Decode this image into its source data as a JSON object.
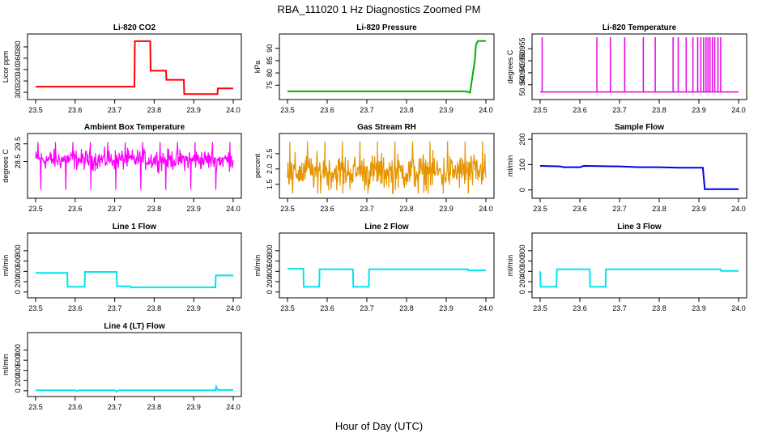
{
  "figure": {
    "title": "RBA_111020  1 Hz Diagnostics Zoomed PM",
    "xlabel": "Hour of Day (UTC)"
  },
  "chart_data": [
    {
      "id": "co2",
      "type": "line",
      "title": "Li-820 CO2",
      "ylabel": "Licor ppm",
      "color": "#ff0000",
      "xlim": [
        23.5,
        24.0
      ],
      "ylim": [
        293,
        397
      ],
      "xticks": [
        "23.5",
        "23.6",
        "23.7",
        "23.8",
        "23.9",
        "24.0"
      ],
      "yticks": [
        300,
        320,
        340,
        360,
        380
      ],
      "x": [
        23.5,
        23.75,
        23.751,
        23.79,
        23.791,
        23.83,
        23.831,
        23.875,
        23.876,
        23.96,
        23.961,
        24.0
      ],
      "y": [
        310,
        310,
        390,
        390,
        338,
        338,
        322,
        322,
        297,
        297,
        307,
        307
      ]
    },
    {
      "id": "pressure",
      "type": "line",
      "title": "Li-820 Pressure",
      "ylabel": "kPa",
      "color": "#00b000",
      "xlim": [
        23.5,
        24.0
      ],
      "ylim": [
        70.5,
        94.5
      ],
      "xticks": [
        "23.5",
        "23.6",
        "23.7",
        "23.8",
        "23.9",
        "24.0"
      ],
      "yticks": [
        75,
        80,
        85,
        90
      ],
      "x": [
        23.5,
        23.95,
        23.96,
        23.972,
        23.975,
        23.98,
        24.0
      ],
      "y": [
        72.5,
        72.5,
        72.0,
        85.0,
        91.5,
        93.0,
        93.0
      ]
    },
    {
      "id": "licor_temp",
      "type": "spikes",
      "title": "Li-820 Temperature",
      "ylabel": "degrees C",
      "color": "#e600e6",
      "xlim": [
        23.5,
        24.0
      ],
      "ylim": [
        50.9352,
        50.9598
      ],
      "xticks": [
        "23.5",
        "23.6",
        "23.7",
        "23.8",
        "23.9",
        "24.0"
      ],
      "yticks": [
        "50.940",
        "50.945",
        "50.950",
        "50.955"
      ],
      "baseline": 50.937,
      "top": 50.9598,
      "spike_x": [
        23.505,
        23.643,
        23.677,
        23.713,
        23.76,
        23.79,
        23.835,
        23.848,
        23.868,
        23.885,
        23.897,
        23.905,
        23.912,
        23.918,
        23.923,
        23.928,
        23.934,
        23.94,
        23.948,
        23.955
      ]
    },
    {
      "id": "ambient_temp",
      "type": "noise",
      "title": "Ambient Box Temperature",
      "ylabel": "degrees C",
      "color": "#ff00ff",
      "xlim": [
        23.5,
        24.0
      ],
      "ylim": [
        26.6,
        29.9
      ],
      "xticks": [
        "23.5",
        "23.6",
        "23.7",
        "23.8",
        "23.9",
        "24.0"
      ],
      "yticks": [
        "28.5",
        "29.5"
      ],
      "ytick_values": [
        28.5,
        29.5
      ],
      "mean": 28.6,
      "amplitude": 0.35,
      "min": 26.9,
      "max": 29.6
    },
    {
      "id": "gas_rh",
      "type": "noise",
      "title": "Gas Stream RH",
      "ylabel": "percent",
      "color": "#e69500",
      "xlim": [
        23.5,
        24.0
      ],
      "ylim": [
        1.15,
        3.05
      ],
      "xticks": [
        "23.5",
        "23.6",
        "23.7",
        "23.8",
        "23.9",
        "24.0"
      ],
      "yticks": [
        "1.5",
        "2.0",
        "2.5"
      ],
      "ytick_values": [
        1.5,
        2.0,
        2.5
      ],
      "mean": 1.9,
      "amplitude": 0.35,
      "min": 1.2,
      "max": 2.9
    },
    {
      "id": "sample_flow",
      "type": "line",
      "title": "Sample Flow",
      "ylabel": "ml/min",
      "color": "#0000e6",
      "xlim": [
        23.5,
        24.0
      ],
      "ylim": [
        -20,
        210
      ],
      "xticks": [
        "23.5",
        "23.6",
        "23.7",
        "23.8",
        "23.9",
        "24.0"
      ],
      "yticks": [
        0,
        100,
        200
      ],
      "x": [
        23.5,
        23.55,
        23.56,
        23.6,
        23.61,
        23.7,
        23.75,
        23.8,
        23.85,
        23.91,
        23.915,
        24.0
      ],
      "y": [
        95,
        93,
        90,
        90,
        95,
        93,
        90,
        90,
        88,
        88,
        3,
        3
      ]
    },
    {
      "id": "line1_flow",
      "type": "line",
      "title": "Line 1 Flow",
      "ylabel": "ml/min",
      "color": "#00e5ee",
      "xlim": [
        23.5,
        24.0
      ],
      "ylim": [
        -50,
        1080
      ],
      "xticks": [
        "23.5",
        "23.6",
        "23.7",
        "23.8",
        "23.9",
        "24.0"
      ],
      "yticks": [
        0,
        200,
        400,
        600,
        800
      ],
      "x": [
        23.5,
        23.58,
        23.581,
        23.624,
        23.625,
        23.705,
        23.706,
        23.74,
        23.741,
        23.955,
        23.956,
        24.0
      ],
      "y": [
        370,
        370,
        100,
        100,
        390,
        390,
        110,
        110,
        90,
        90,
        320,
        320
      ]
    },
    {
      "id": "line2_flow",
      "type": "line",
      "title": "Line 2 Flow",
      "ylabel": "ml/min",
      "color": "#00e5ee",
      "xlim": [
        23.5,
        24.0
      ],
      "ylim": [
        -50,
        1080
      ],
      "xticks": [
        "23.5",
        "23.6",
        "23.7",
        "23.8",
        "23.9",
        "24.0"
      ],
      "yticks": [
        0,
        200,
        400,
        600,
        800
      ],
      "x": [
        23.5,
        23.54,
        23.541,
        23.58,
        23.581,
        23.665,
        23.666,
        23.705,
        23.706,
        23.955,
        23.956,
        24.0
      ],
      "y": [
        450,
        450,
        100,
        100,
        440,
        440,
        100,
        100,
        440,
        440,
        420,
        420
      ]
    },
    {
      "id": "line3_flow",
      "type": "line",
      "title": "Line 3 Flow",
      "ylabel": "ml/min",
      "color": "#00e5ee",
      "xlim": [
        23.5,
        24.0
      ],
      "ylim": [
        -50,
        1080
      ],
      "xticks": [
        "23.5",
        "23.6",
        "23.7",
        "23.8",
        "23.9",
        "24.0"
      ],
      "yticks": [
        0,
        200,
        400,
        600,
        800
      ],
      "x": [
        23.5,
        23.501,
        23.541,
        23.542,
        23.625,
        23.626,
        23.665,
        23.666,
        23.955,
        23.956,
        24.0
      ],
      "y": [
        400,
        100,
        100,
        440,
        440,
        100,
        100,
        440,
        440,
        410,
        410
      ]
    },
    {
      "id": "line4_flow",
      "type": "line",
      "title": "Line 4 (LT) Flow",
      "ylabel": "ml/min",
      "color": "#00e5ee",
      "xlim": [
        23.5,
        24.0
      ],
      "ylim": [
        -50,
        1080
      ],
      "xticks": [
        "23.5",
        "23.6",
        "23.7",
        "23.8",
        "23.9",
        "24.0"
      ],
      "yticks": [
        0,
        200,
        400,
        600,
        800
      ],
      "x": [
        23.5,
        23.6,
        23.605,
        23.61,
        23.7,
        23.705,
        23.71,
        23.955,
        23.957,
        23.96,
        24.0
      ],
      "y": [
        10,
        10,
        -5,
        10,
        10,
        -15,
        10,
        10,
        80,
        15,
        15
      ]
    }
  ]
}
